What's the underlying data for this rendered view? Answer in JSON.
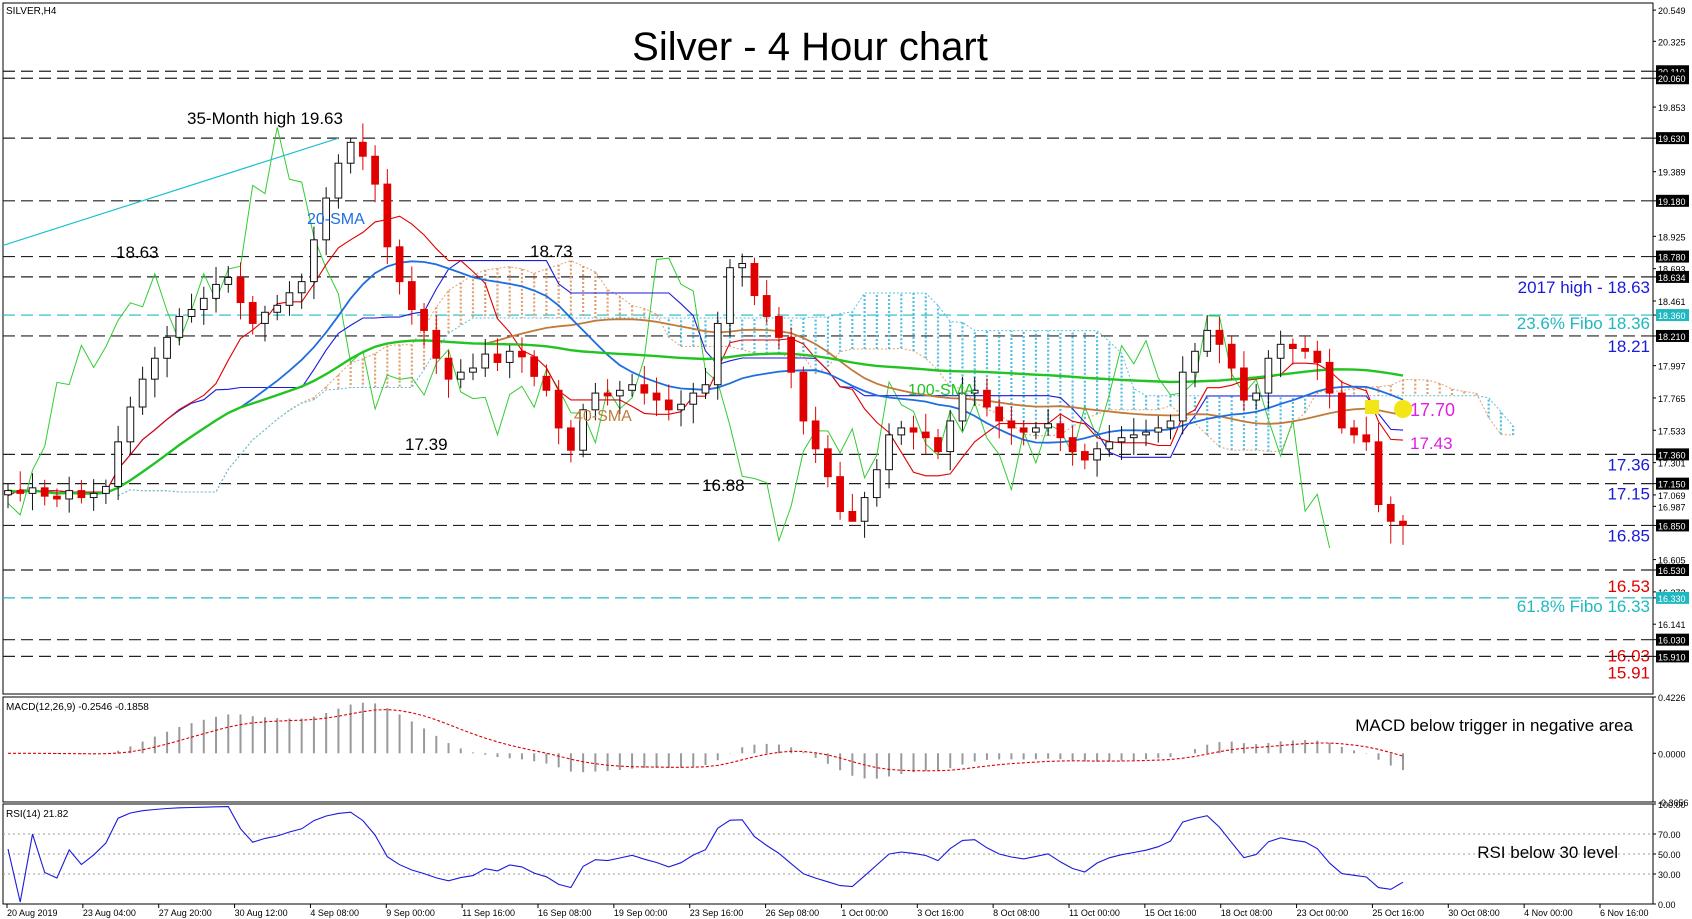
{
  "symbol_label": "SILVER,H4",
  "chart_title": "Silver - 4 Hour chart",
  "colors": {
    "bull": "#111111",
    "bear": "#e00000",
    "sma20": "#1e6ee0",
    "sma40": "#c07a3a",
    "sma100": "#22c422",
    "fast": "#e00000",
    "kijun": "#1a1adc",
    "chikou": "#33cc33",
    "cloud_bull": "#e0a070",
    "cloud_bear": "#55bfe0",
    "level": "#222222",
    "fibo": "#20b8c0",
    "support": "#e00000",
    "resistance": "#1a1adc",
    "highlight": "#e020e0",
    "rsi": "#1a1adc",
    "macd_hist": "#999999",
    "macd_signal": "#e00000"
  },
  "chart_data": [
    {
      "type": "candlestick",
      "panel": "price",
      "title": "Silver - 4 Hour chart",
      "ylim": [
        15.64,
        20.6
      ],
      "y_ticks": [
        "20.549",
        "20.325",
        "20.110",
        "20.060",
        "19.853",
        "19.630",
        "19.389",
        "19.180",
        "18.925",
        "18.780",
        "18.693",
        "18.634",
        "18.461",
        "18.360",
        "18.210",
        "17.997",
        "17.765",
        "17.533",
        "17.360",
        "17.301",
        "17.150",
        "17.069",
        "16.987",
        "16.850",
        "16.605",
        "16.530",
        "16.373",
        "16.330",
        "16.141",
        "16.030",
        "15.910"
      ],
      "y_tick_values": [
        20.549,
        20.325,
        20.11,
        20.06,
        19.853,
        19.63,
        19.389,
        19.18,
        18.925,
        18.78,
        18.693,
        18.634,
        18.461,
        18.36,
        18.21,
        17.997,
        17.765,
        17.533,
        17.36,
        17.301,
        17.15,
        17.069,
        16.987,
        16.85,
        16.605,
        16.53,
        16.373,
        16.33,
        16.141,
        16.03,
        15.91
      ],
      "x_labels": [
        "20 Aug 2019",
        "23 Aug 04:00",
        "27 Aug 20:00",
        "30 Aug 12:00",
        "4 Sep 08:00",
        "9 Sep 00:00",
        "11 Sep 16:00",
        "16 Sep 08:00",
        "19 Sep 00:00",
        "23 Sep 16:00",
        "26 Sep 08:00",
        "1 Oct 00:00",
        "3 Oct 16:00",
        "8 Oct 08:00",
        "11 Oct 00:00",
        "15 Oct 16:00",
        "18 Oct 08:00",
        "23 Oct 00:00",
        "25 Oct 16:00",
        "30 Oct 08:00",
        "4 Nov 00:00",
        "6 Nov 16:00"
      ],
      "closes": [
        17.1,
        17.08,
        17.12,
        17.06,
        17.04,
        17.1,
        17.05,
        17.08,
        17.13,
        17.45,
        17.7,
        17.9,
        18.05,
        18.2,
        18.35,
        18.4,
        18.48,
        18.58,
        18.63,
        18.45,
        18.3,
        18.38,
        18.43,
        18.52,
        18.6,
        18.9,
        19.2,
        19.45,
        19.6,
        19.5,
        19.3,
        18.85,
        18.6,
        18.4,
        18.25,
        18.05,
        17.9,
        17.95,
        17.98,
        18.08,
        18.02,
        18.1,
        18.06,
        17.92,
        17.82,
        17.55,
        17.39,
        17.68,
        17.8,
        17.78,
        17.82,
        17.86,
        17.8,
        17.75,
        17.68,
        17.72,
        17.8,
        17.86,
        18.3,
        18.7,
        18.73,
        18.5,
        18.35,
        18.2,
        17.95,
        17.6,
        17.4,
        17.2,
        16.95,
        16.88,
        17.05,
        17.25,
        17.5,
        17.55,
        17.52,
        17.48,
        17.38,
        17.6,
        17.8,
        17.82,
        17.7,
        17.6,
        17.55,
        17.52,
        17.55,
        17.58,
        17.48,
        17.38,
        17.32,
        17.4,
        17.45,
        17.48,
        17.5,
        17.52,
        17.55,
        17.6,
        17.95,
        18.1,
        18.25,
        18.15,
        17.98,
        17.75,
        17.8,
        18.05,
        18.15,
        18.12,
        18.1,
        18.02,
        17.8,
        17.55,
        17.5,
        17.45,
        17.0,
        16.88,
        16.85
      ],
      "annotations": [
        "35-Month high 19.63",
        "18.63",
        "18.73",
        "17.39",
        "16.88"
      ],
      "series": [
        {
          "name": "20-SMA",
          "label_text": "20-SMA"
        },
        {
          "name": "40-SMA",
          "label_text": "40-SMA"
        },
        {
          "name": "100-SMA",
          "label_text": "100-SMA"
        }
      ],
      "levels": [
        {
          "value": 20.11,
          "style": "dashed"
        },
        {
          "value": 20.06,
          "style": "dashed"
        },
        {
          "value": 19.63,
          "style": "dashed"
        },
        {
          "value": 19.18,
          "style": "dashed"
        },
        {
          "value": 18.78,
          "style": "dashed"
        },
        {
          "value": 18.634,
          "style": "dashed",
          "label": "2017 high - 18.63",
          "label_color": "resistance"
        },
        {
          "value": 18.36,
          "style": "fibo",
          "label": "23.6% Fibo 18.36",
          "label_color": "fibo"
        },
        {
          "value": 18.21,
          "style": "dashed",
          "label": "18.21",
          "label_color": "resistance"
        },
        {
          "value": 17.36,
          "style": "dashed",
          "label": "17.36",
          "label_color": "resistance"
        },
        {
          "value": 17.15,
          "style": "dashed",
          "label": "17.15",
          "label_color": "resistance"
        },
        {
          "value": 16.85,
          "style": "dashed",
          "label": "16.85",
          "label_color": "resistance"
        },
        {
          "value": 16.53,
          "style": "dashed",
          "label": "16.53",
          "label_color": "support"
        },
        {
          "value": 16.33,
          "style": "fibo",
          "label": "61.8% Fibo 16.33",
          "label_color": "fibo"
        },
        {
          "value": 16.03,
          "style": "dashed",
          "label": "16.03",
          "label_color": "support"
        },
        {
          "value": 15.91,
          "style": "dashed",
          "label": "15.91",
          "label_color": "support"
        }
      ],
      "highlight_labels": [
        "17.70",
        "17.43"
      ]
    },
    {
      "type": "histogram+line",
      "panel": "macd",
      "indicator": "MACD(12,26,9) -0.2546 -0.1858",
      "ylim": [
        -0.3656,
        0.4226
      ],
      "y_ticks": [
        "0.4226",
        "0.0000",
        "-0.3656"
      ],
      "y_tick_values": [
        0.4226,
        0,
        -0.3656
      ],
      "annotation": "MACD below trigger in negative area"
    },
    {
      "type": "line",
      "panel": "rsi",
      "indicator": "RSI(14) 21.82",
      "ylim": [
        0,
        100
      ],
      "y_ticks": [
        "100.00",
        "70.00",
        "50.00",
        "30.00",
        "0.00"
      ],
      "y_tick_values": [
        100,
        70,
        50,
        30,
        0
      ],
      "reference_levels": [
        70,
        50,
        30
      ],
      "annotation": "RSI below 30 level"
    }
  ]
}
